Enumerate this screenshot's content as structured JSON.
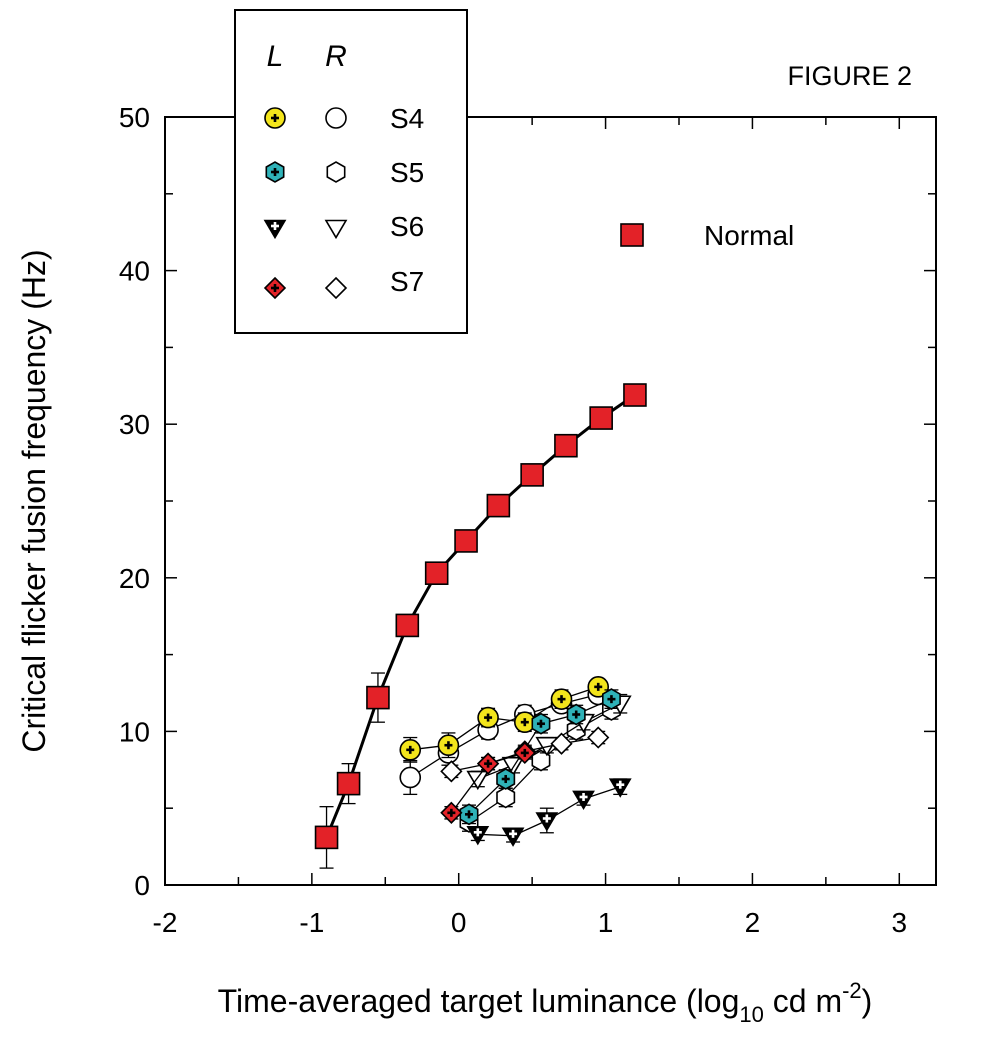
{
  "chart_data": {
    "type": "scatter",
    "title": "",
    "figure_label": "FIGURE 2",
    "xlabel": {
      "main": "Time-averaged target luminance (log",
      "sub": "10",
      "mid": " cd m",
      "sup": "-2",
      "end": ")"
    },
    "ylabel": "Critical flicker fusion frequency (Hz)",
    "xlim": [
      -2,
      3.25
    ],
    "ylim": [
      0,
      50
    ],
    "xticks": [
      "-2",
      "-1",
      "0",
      "1",
      "2",
      "3"
    ],
    "yticks": [
      "0",
      "10",
      "20",
      "30",
      "40",
      "50"
    ],
    "legend": {
      "placement": "top-left",
      "col_left": "L",
      "col_right": "R",
      "entries": [
        "S4",
        "S5",
        "S6",
        "S7"
      ],
      "normal_label": "Normal"
    },
    "colors": {
      "normal": "#e32228",
      "s4": "#f3e51c",
      "s5": "#2fb2b8",
      "s6": "#000000",
      "s7": "#e32228"
    },
    "series": [
      {
        "name": "Normal",
        "marker": "square",
        "x": [
          -0.9,
          -0.75,
          -0.55,
          -0.35,
          -0.15,
          0.05,
          0.27,
          0.5,
          0.73,
          0.97,
          1.2
        ],
        "y": [
          3.1,
          6.6,
          12.2,
          16.9,
          20.3,
          22.4,
          24.7,
          26.7,
          28.6,
          30.4,
          31.9
        ],
        "err": [
          2.0,
          1.3,
          1.6,
          0.4,
          0.4,
          0.4,
          0.4,
          0.4,
          0.4,
          0.4,
          0.5
        ]
      },
      {
        "name": "S4",
        "eye": "L",
        "marker": "circle",
        "x": [
          -0.33,
          -0.07,
          0.2,
          0.45,
          0.7,
          0.95
        ],
        "y": [
          8.8,
          9.1,
          10.9,
          10.6,
          12.1,
          12.9
        ],
        "err": [
          0.8,
          0.8,
          0.6,
          0.6,
          0.6,
          0.5
        ]
      },
      {
        "name": "S4",
        "eye": "R",
        "marker": "circle",
        "x": [
          -0.33,
          -0.07,
          0.2,
          0.45,
          0.7,
          0.95
        ],
        "y": [
          7.0,
          8.6,
          10.1,
          11.1,
          11.8,
          12.4
        ],
        "err": [
          1.1,
          0.8,
          0.6,
          0.6,
          0.5,
          0.5
        ]
      },
      {
        "name": "S5",
        "eye": "L",
        "marker": "hexagon",
        "x": [
          0.07,
          0.32,
          0.56,
          0.8,
          1.04
        ],
        "y": [
          4.6,
          6.9,
          10.5,
          11.1,
          12.1
        ],
        "err": [
          0.6,
          0.6,
          0.6,
          0.6,
          0.6
        ]
      },
      {
        "name": "S5",
        "eye": "R",
        "marker": "hexagon",
        "x": [
          0.07,
          0.32,
          0.56,
          0.8,
          1.04
        ],
        "y": [
          4.1,
          5.7,
          8.1,
          10.1,
          11.4
        ],
        "err": [
          0.6,
          0.6,
          0.6,
          0.6,
          0.6
        ]
      },
      {
        "name": "S6",
        "eye": "L",
        "marker": "triangle-down",
        "x": [
          0.13,
          0.37,
          0.6,
          0.85,
          1.1
        ],
        "y": [
          3.3,
          3.2,
          4.2,
          5.6,
          6.4
        ],
        "err": [
          0.4,
          0.4,
          0.8,
          0.4,
          0.5
        ]
      },
      {
        "name": "S6",
        "eye": "R",
        "marker": "triangle-down",
        "x": [
          0.13,
          0.37,
          0.6,
          0.85,
          1.1
        ],
        "y": [
          6.9,
          7.8,
          9.1,
          10.6,
          11.8
        ],
        "err": [
          0.5,
          0.5,
          0.5,
          0.5,
          0.6
        ]
      },
      {
        "name": "S7",
        "eye": "L",
        "marker": "diamond",
        "x": [
          -0.05,
          0.2,
          0.45
        ],
        "y": [
          4.7,
          7.9,
          8.6
        ],
        "err": [
          0.4,
          0.4,
          0.4
        ]
      },
      {
        "name": "S7",
        "eye": "R",
        "marker": "diamond",
        "x": [
          -0.05,
          0.2,
          0.45,
          0.7,
          0.95
        ],
        "y": [
          7.4,
          7.9,
          8.7,
          9.2,
          9.6
        ],
        "err": [
          0.4,
          0.4,
          0.4,
          0.4,
          0.4
        ]
      }
    ]
  }
}
